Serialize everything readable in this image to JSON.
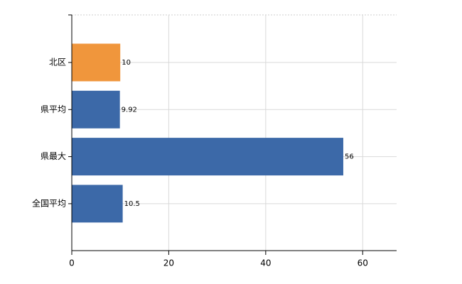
{
  "chart_data": {
    "type": "hbar",
    "categories": [
      "北区",
      "県平均",
      "県最大",
      "全国平均"
    ],
    "values": [
      10,
      9.92,
      56,
      10.5
    ],
    "colors": [
      "#f0963c",
      "#3c69a8",
      "#3c69a8",
      "#3c69a8"
    ],
    "xlim": [
      0,
      67
    ],
    "xticks": [
      0,
      20,
      40,
      60
    ],
    "grid": true
  }
}
